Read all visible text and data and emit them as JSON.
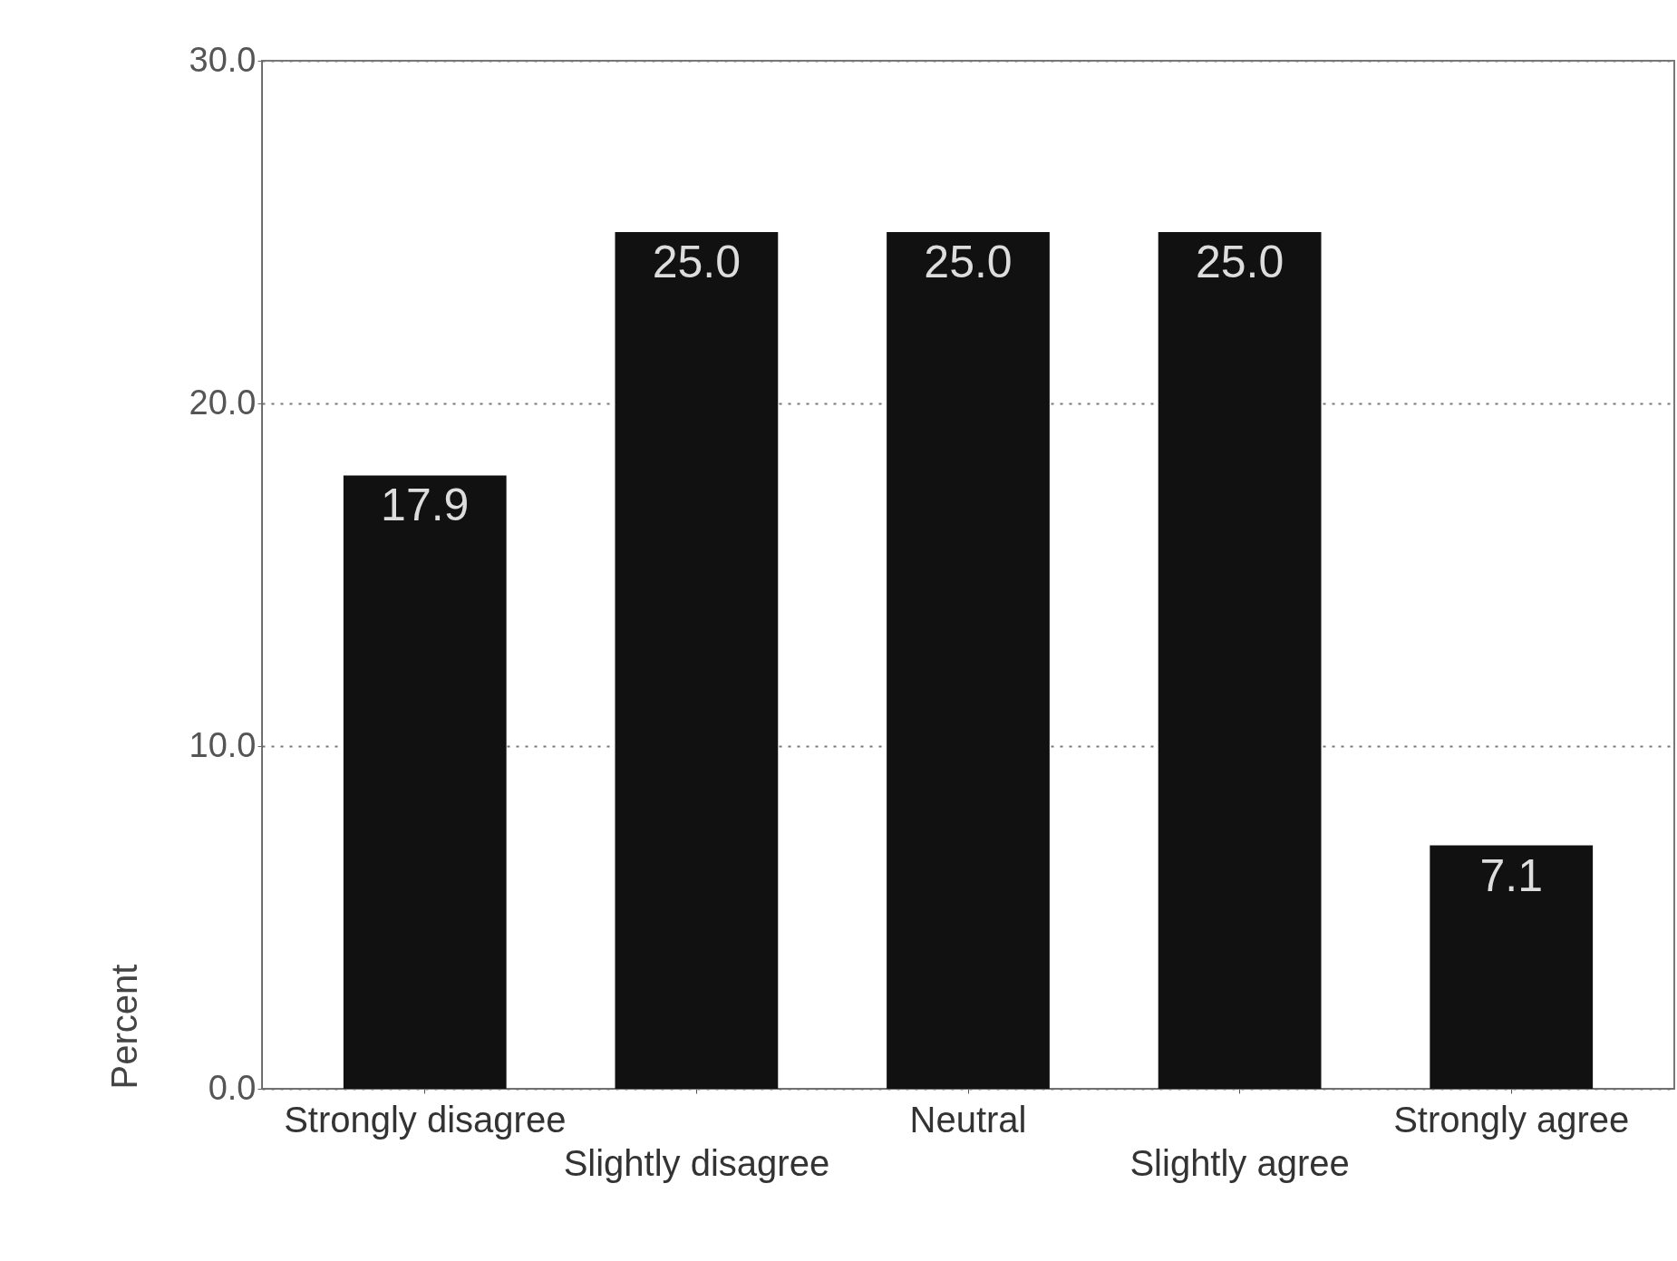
{
  "chart_data": {
    "type": "bar",
    "ylabel": "Percent",
    "categories": [
      "Strongly disagree",
      "Slightly disagree",
      "Neutral",
      "Slightly agree",
      "Strongly agree"
    ],
    "values": [
      17.9,
      25.0,
      25.0,
      25.0,
      7.1
    ],
    "color": "#111111",
    "ylim": [
      0,
      30
    ],
    "yticks": [
      {
        "value": 0,
        "label": "0.0"
      },
      {
        "value": 10,
        "label": "10.0"
      },
      {
        "value": 20,
        "label": "20.0"
      },
      {
        "value": 30,
        "label": "30.0"
      }
    ],
    "grid": "y",
    "value_labels": [
      "17.9",
      "25.0",
      "25.0",
      "25.0",
      "7.1"
    ]
  }
}
